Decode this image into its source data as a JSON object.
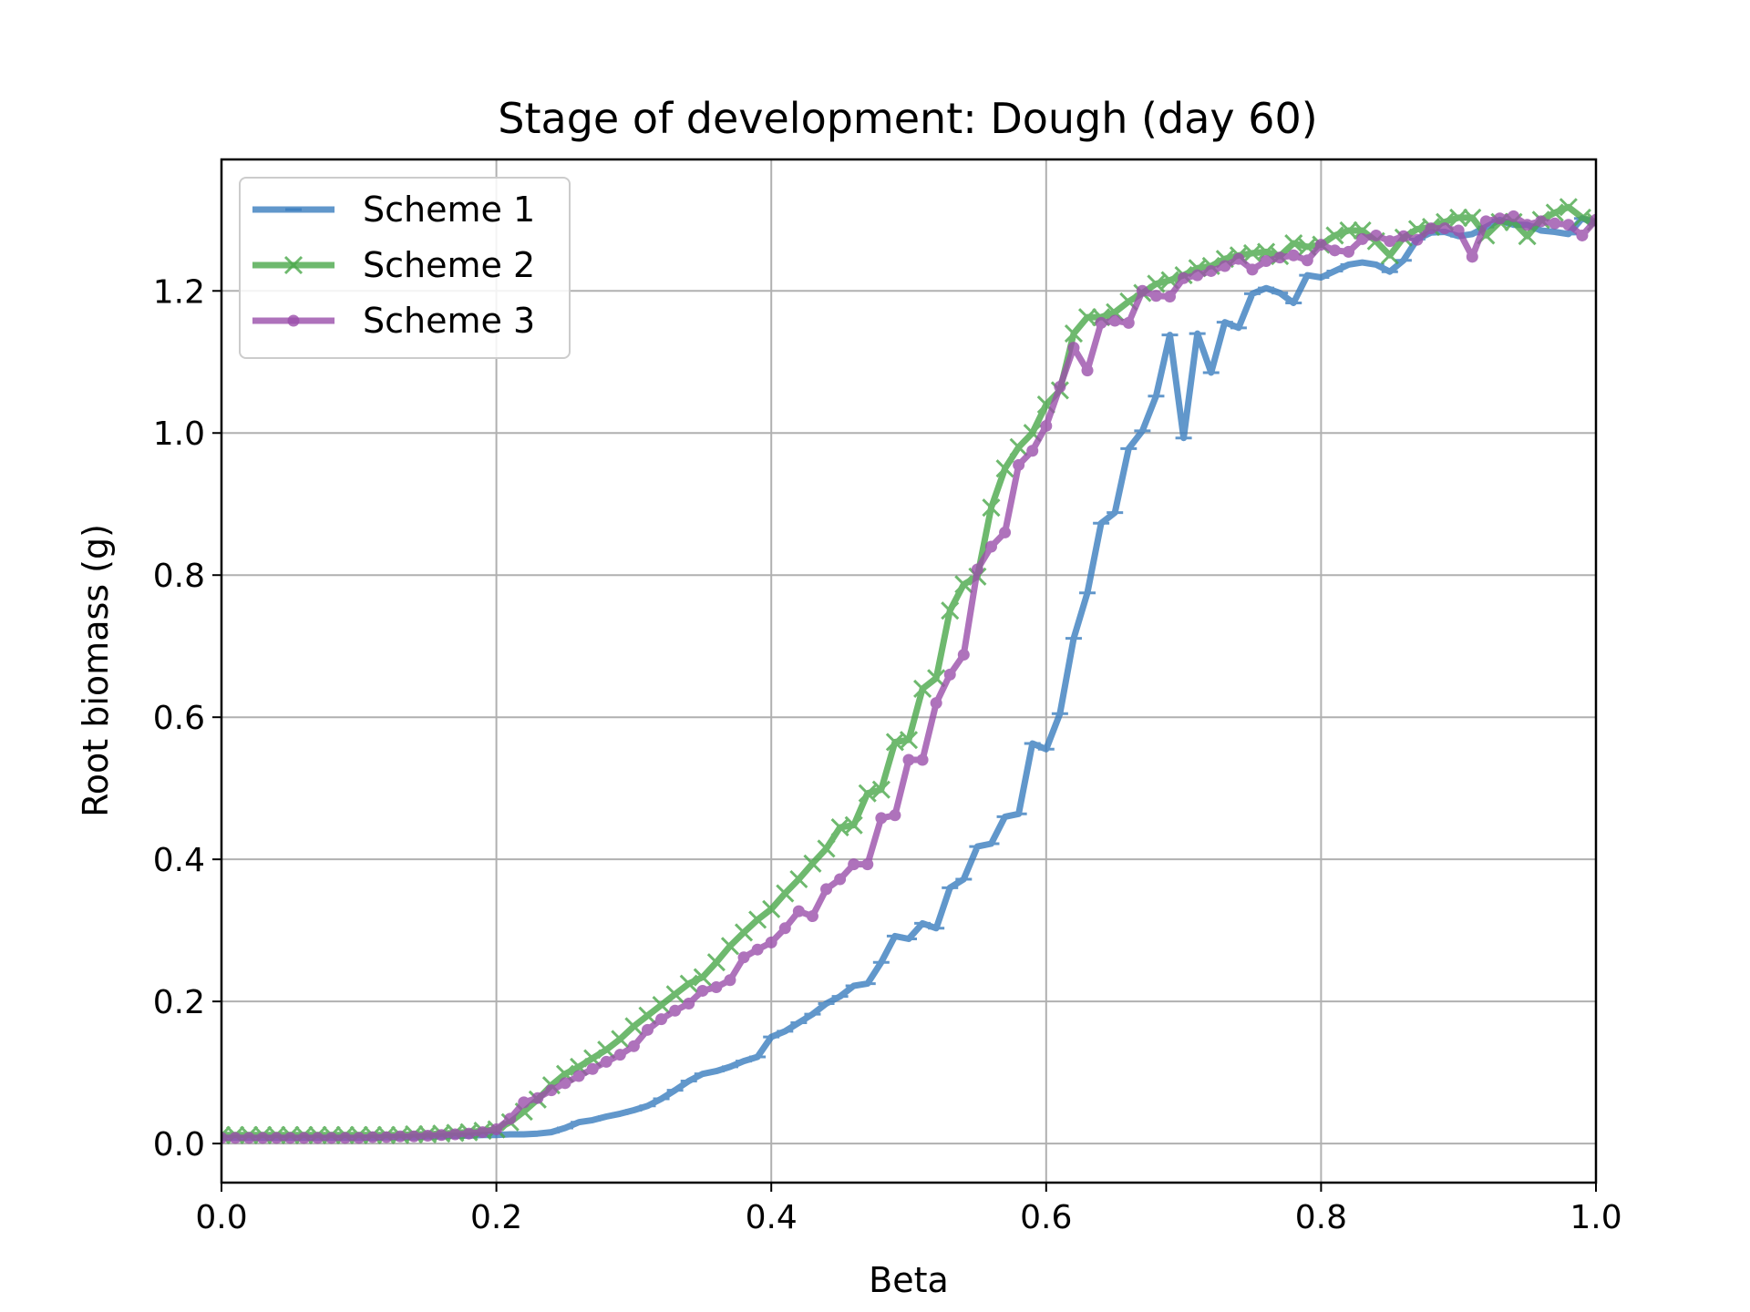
{
  "chart_data": {
    "type": "line",
    "title": "Stage of development: Dough (day 60)",
    "xlabel": "Beta",
    "ylabel": "Root biomass (g)",
    "xlim": [
      0.0,
      1.0
    ],
    "ylim": [
      -0.055,
      1.385
    ],
    "xticks": [
      "0.0",
      "0.2",
      "0.4",
      "0.6",
      "0.8",
      "1.0"
    ],
    "yticks": [
      "0.0",
      "0.2",
      "0.4",
      "0.6",
      "0.8",
      "1.0",
      "1.2"
    ],
    "grid": true,
    "legend": "top-left",
    "x": [
      0.0,
      0.01,
      0.02,
      0.03,
      0.04,
      0.05,
      0.06,
      0.07,
      0.08,
      0.09,
      0.1,
      0.11,
      0.12,
      0.13,
      0.14,
      0.15,
      0.16,
      0.17,
      0.18,
      0.19,
      0.2,
      0.21,
      0.22,
      0.23,
      0.24,
      0.25,
      0.26,
      0.27,
      0.28,
      0.29,
      0.3,
      0.31,
      0.32,
      0.33,
      0.34,
      0.35,
      0.36,
      0.37,
      0.38,
      0.39,
      0.4,
      0.41,
      0.42,
      0.43,
      0.44,
      0.45,
      0.46,
      0.47,
      0.48,
      0.49,
      0.5,
      0.51,
      0.52,
      0.53,
      0.54,
      0.55,
      0.56,
      0.57,
      0.58,
      0.59,
      0.6,
      0.61,
      0.62,
      0.63,
      0.64,
      0.65,
      0.66,
      0.67,
      0.68,
      0.69,
      0.7,
      0.71,
      0.72,
      0.73,
      0.74,
      0.75,
      0.76,
      0.77,
      0.78,
      0.79,
      0.8,
      0.81,
      0.82,
      0.83,
      0.84,
      0.85,
      0.86,
      0.87,
      0.88,
      0.89,
      0.9,
      0.91,
      0.92,
      0.93,
      0.94,
      0.95,
      0.96,
      0.97,
      0.98,
      0.99,
      1.0
    ],
    "series": [
      {
        "name": "Scheme 1",
        "color": "#3a7ebf",
        "marker": "hline",
        "values": [
          0.008,
          0.008,
          0.008,
          0.008,
          0.008,
          0.008,
          0.008,
          0.008,
          0.008,
          0.008,
          0.008,
          0.008,
          0.009,
          0.009,
          0.009,
          0.01,
          0.01,
          0.011,
          0.011,
          0.012,
          0.012,
          0.013,
          0.013,
          0.014,
          0.016,
          0.022,
          0.03,
          0.033,
          0.038,
          0.042,
          0.047,
          0.053,
          0.063,
          0.075,
          0.088,
          0.098,
          0.102,
          0.108,
          0.116,
          0.122,
          0.15,
          0.158,
          0.17,
          0.182,
          0.197,
          0.207,
          0.222,
          0.225,
          0.255,
          0.292,
          0.288,
          0.31,
          0.303,
          0.36,
          0.372,
          0.418,
          0.422,
          0.46,
          0.464,
          0.563,
          0.555,
          0.605,
          0.711,
          0.775,
          0.873,
          0.888,
          0.978,
          1.003,
          1.052,
          1.138,
          0.993,
          1.14,
          1.085,
          1.156,
          1.148,
          1.196,
          1.204,
          1.197,
          1.183,
          1.222,
          1.219,
          1.228,
          1.237,
          1.24,
          1.237,
          1.227,
          1.243,
          1.273,
          1.282,
          1.283,
          1.277,
          1.28,
          1.29,
          1.3,
          1.293,
          1.293,
          1.285,
          1.283,
          1.28,
          1.302,
          1.295
        ]
      },
      {
        "name": "Scheme 2",
        "color": "#4aa84a",
        "marker": "x",
        "values": [
          0.012,
          0.012,
          0.012,
          0.012,
          0.012,
          0.012,
          0.012,
          0.012,
          0.012,
          0.012,
          0.012,
          0.012,
          0.012,
          0.012,
          0.013,
          0.013,
          0.014,
          0.015,
          0.016,
          0.018,
          0.02,
          0.03,
          0.045,
          0.062,
          0.082,
          0.098,
          0.108,
          0.12,
          0.132,
          0.147,
          0.165,
          0.18,
          0.195,
          0.21,
          0.225,
          0.234,
          0.255,
          0.278,
          0.297,
          0.315,
          0.33,
          0.352,
          0.372,
          0.394,
          0.415,
          0.445,
          0.448,
          0.493,
          0.498,
          0.565,
          0.568,
          0.64,
          0.655,
          0.75,
          0.787,
          0.798,
          0.895,
          0.95,
          0.98,
          1.0,
          1.04,
          1.06,
          1.14,
          1.163,
          1.163,
          1.17,
          1.185,
          1.197,
          1.21,
          1.215,
          1.222,
          1.232,
          1.235,
          1.245,
          1.25,
          1.253,
          1.255,
          1.249,
          1.267,
          1.262,
          1.265,
          1.278,
          1.285,
          1.285,
          1.27,
          1.25,
          1.275,
          1.287,
          1.29,
          1.297,
          1.303,
          1.303,
          1.278,
          1.297,
          1.297,
          1.277,
          1.3,
          1.31,
          1.318,
          1.303,
          1.297
        ]
      },
      {
        "name": "Scheme 3",
        "color": "#9b4fab",
        "marker": "o",
        "values": [
          0.008,
          0.008,
          0.008,
          0.008,
          0.008,
          0.008,
          0.008,
          0.008,
          0.008,
          0.008,
          0.008,
          0.009,
          0.009,
          0.01,
          0.01,
          0.011,
          0.012,
          0.013,
          0.014,
          0.016,
          0.02,
          0.035,
          0.058,
          0.064,
          0.075,
          0.085,
          0.095,
          0.105,
          0.115,
          0.125,
          0.137,
          0.16,
          0.175,
          0.187,
          0.197,
          0.215,
          0.22,
          0.23,
          0.262,
          0.273,
          0.283,
          0.303,
          0.327,
          0.32,
          0.358,
          0.372,
          0.393,
          0.393,
          0.458,
          0.462,
          0.54,
          0.54,
          0.62,
          0.66,
          0.688,
          0.808,
          0.84,
          0.86,
          0.955,
          0.975,
          1.01,
          1.065,
          1.12,
          1.088,
          1.155,
          1.158,
          1.155,
          1.2,
          1.193,
          1.192,
          1.218,
          1.222,
          1.228,
          1.235,
          1.245,
          1.23,
          1.242,
          1.247,
          1.25,
          1.243,
          1.265,
          1.257,
          1.255,
          1.273,
          1.278,
          1.27,
          1.277,
          1.272,
          1.288,
          1.288,
          1.285,
          1.248,
          1.298,
          1.302,
          1.305,
          1.293,
          1.298,
          1.295,
          1.293,
          1.278,
          1.3
        ]
      }
    ]
  }
}
